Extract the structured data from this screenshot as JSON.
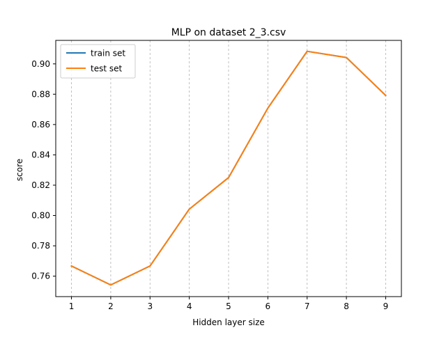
{
  "chart_data": {
    "type": "line",
    "title": "MLP on dataset 2_3.csv",
    "xlabel": "Hidden layer size",
    "ylabel": "score",
    "x": [
      1,
      2,
      3,
      4,
      5,
      6,
      7,
      8,
      9
    ],
    "series": [
      {
        "name": "train set",
        "color": "#1f77b4",
        "values": [
          0.7667,
          0.7542,
          0.7667,
          0.8042,
          0.825,
          0.8708,
          0.9083,
          0.9042,
          0.8792
        ]
      },
      {
        "name": "test set",
        "color": "#ff7f0e",
        "values": [
          0.7667,
          0.7542,
          0.7667,
          0.8042,
          0.825,
          0.8708,
          0.9083,
          0.9042,
          0.8792
        ]
      }
    ],
    "xlim": [
      0.6,
      9.4
    ],
    "ylim": [
      0.7465,
      0.9155
    ],
    "xticks": [
      1,
      2,
      3,
      4,
      5,
      6,
      7,
      8,
      9
    ],
    "yticks": [
      0.76,
      0.78,
      0.8,
      0.82,
      0.84,
      0.86,
      0.88,
      0.9
    ],
    "grid": "vertical-dashed",
    "legend_position": "top-left"
  }
}
